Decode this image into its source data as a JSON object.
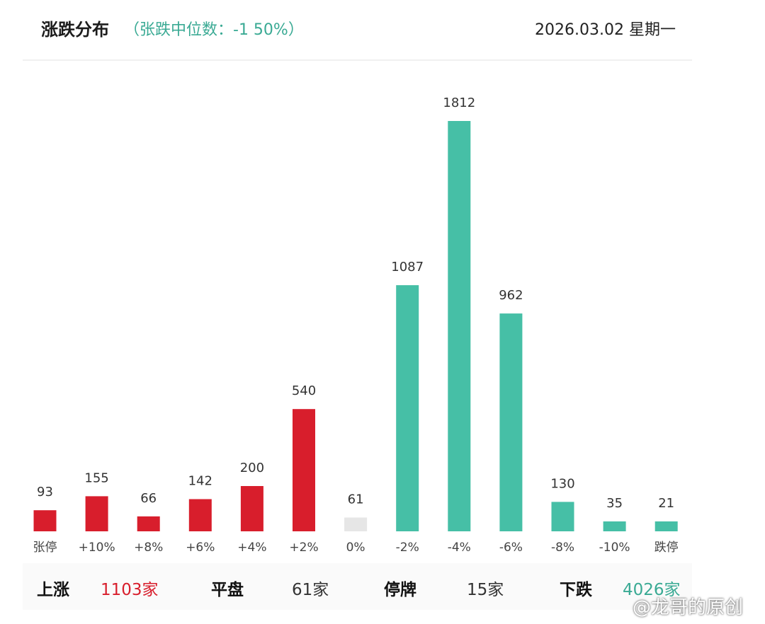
{
  "header": {
    "title": "涨跌分布",
    "subtitle": "（张跌中位数：-1 50%）",
    "date": "2026.03.02 星期一"
  },
  "colors": {
    "up": "#d81e2c",
    "flat": "#e6e6e6",
    "down": "#46bfa6"
  },
  "chart_data": {
    "type": "bar",
    "categories": [
      "张停",
      "+10%",
      "+8%",
      "+6%",
      "+4%",
      "+2%",
      "0%",
      "-2%",
      "-4%",
      "-6%",
      "-8%",
      "-10%",
      "跌停"
    ],
    "values": [
      93,
      155,
      66,
      142,
      200,
      540,
      61,
      1087,
      1812,
      962,
      130,
      35,
      21
    ],
    "bar_colors": [
      "up",
      "up",
      "up",
      "up",
      "up",
      "up",
      "flat",
      "down",
      "down",
      "down",
      "down",
      "down",
      "down"
    ],
    "title": "涨跌分布",
    "xlabel": "",
    "ylabel": "",
    "ylim": [
      0,
      1812
    ],
    "grid": false
  },
  "summary": [
    {
      "label": "上涨",
      "value": "1103家",
      "tone": "up"
    },
    {
      "label": "平盘",
      "value": "61家",
      "tone": "neutral"
    },
    {
      "label": "停牌",
      "value": "15家",
      "tone": "neutral"
    },
    {
      "label": "下跌",
      "value": "4026家",
      "tone": "down"
    }
  ],
  "watermark": "@龙哥的原创"
}
